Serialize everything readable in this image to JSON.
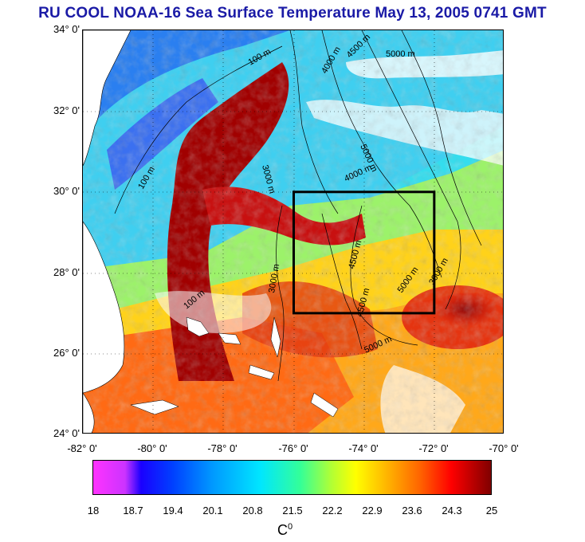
{
  "title": "RU COOL  NOAA-16 Sea Surface Temperature May 13, 2005 0741 GMT",
  "map": {
    "latitude_labels": [
      "34° 0'",
      "32° 0'",
      "30° 0'",
      "28° 0'",
      "26° 0'",
      "24° 0'"
    ],
    "longitude_labels": [
      "-82° 0'",
      "-80° 0'",
      "-78° 0'",
      "-76° 0'",
      "-74° 0'",
      "-72° 0'",
      "-70° 0'"
    ],
    "depth_contour_labels": [
      "100 m",
      "100 m",
      "100 m",
      "3000 m",
      "3000 m",
      "4000 m",
      "4500 m",
      "4500 m",
      "4500 m",
      "5000 m",
      "5000 m",
      "5000 m",
      "5000 m",
      "4000 m",
      "3000 m"
    ],
    "study_box": {
      "lon_min": -76,
      "lon_max": -72,
      "lat_min": 27,
      "lat_max": 30
    },
    "colors": {
      "land": "#ffffff",
      "cloud": "#ffffff",
      "box": "#000000"
    }
  },
  "colorbar": {
    "tick_labels": [
      "18",
      "18.7",
      "19.4",
      "20.1",
      "20.8",
      "21.5",
      "22.2",
      "22.9",
      "23.6",
      "24.3",
      "25"
    ],
    "min": 18,
    "max": 25,
    "unit_label": "C",
    "unit_superscript": "0"
  }
}
